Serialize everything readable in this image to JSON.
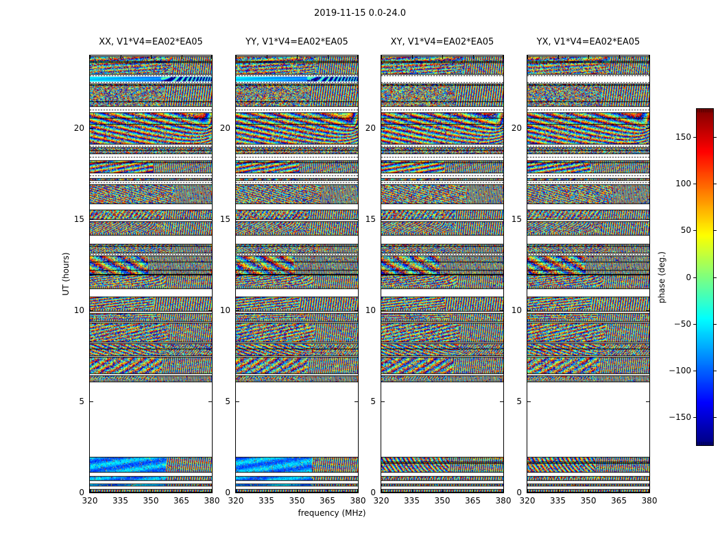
{
  "figure": {
    "background": "#ffffff",
    "text_color": "#000000",
    "spine_color": "#000000"
  },
  "chart_data": {
    "type": "heatmap",
    "title": "2019-11-15 0.0-24.0",
    "xlabel": "frequency (MHz)",
    "ylabel": "UT (hours)",
    "value_label": "phase (deg.)",
    "colormap": "jet",
    "xlim": [
      320,
      380
    ],
    "ylim": [
      0,
      24
    ],
    "x_ticks": [
      320,
      335,
      350,
      365,
      380
    ],
    "y_ticks": [
      0,
      5,
      10,
      15,
      20
    ],
    "value_range": [
      -180,
      180
    ],
    "colorbar_ticks": [
      150,
      100,
      50,
      0,
      -50,
      -100,
      -150
    ],
    "panels": [
      {
        "pol": "XX",
        "title": "XX, V1*V4=EA02*EA05",
        "bottom_blob": true
      },
      {
        "pol": "YY",
        "title": "YY, V1*V4=EA02*EA05",
        "bottom_blob": true
      },
      {
        "pol": "XY",
        "title": "XY, V1*V4=EA02*EA05",
        "bottom_blob": false
      },
      {
        "pol": "YX",
        "title": "YX, V1*V4=EA02*EA05",
        "bottom_blob": false
      }
    ],
    "scans_ut": [
      [
        0.0,
        0.19
      ],
      [
        0.34,
        0.49
      ],
      [
        0.64,
        0.9
      ],
      [
        1.09,
        1.95
      ],
      [
        6.05,
        6.42
      ],
      [
        6.5,
        7.44
      ],
      [
        7.48,
        8.19
      ],
      [
        8.23,
        9.32
      ],
      [
        9.35,
        9.84
      ],
      [
        9.92,
        10.74
      ],
      [
        11.19,
        11.95
      ],
      [
        11.98,
        13.03
      ],
      [
        13.11,
        13.64
      ],
      [
        14.09,
        14.88
      ],
      [
        14.99,
        15.52
      ],
      [
        15.82,
        16.94
      ],
      [
        17.13,
        17.28
      ],
      [
        17.54,
        18.26
      ],
      [
        18.6,
        18.97
      ],
      [
        19.12,
        20.89
      ],
      [
        21.19,
        22.47
      ],
      [
        22.58,
        22.84
      ],
      [
        22.96,
        23.97
      ]
    ],
    "observing_gap_ut": [
      1.95,
      6.05
    ],
    "bright_band_ut": [
      22.58,
      22.84
    ]
  }
}
